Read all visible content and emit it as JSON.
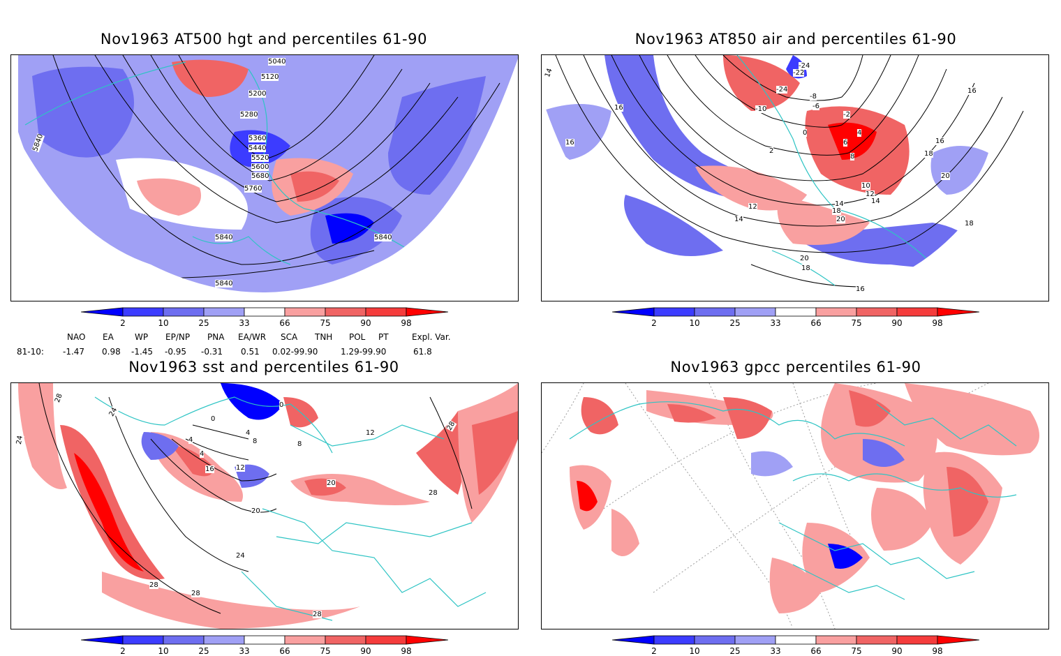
{
  "panels": [
    {
      "id": "at500",
      "title": "Nov1963 AT500 hgt and percentiles 61-90",
      "contour_labels": [
        "5040",
        "5120",
        "5200",
        "5280",
        "5360",
        "5440",
        "5520",
        "5600",
        "5680",
        "5760",
        "5840",
        "5840",
        "5840",
        "5840"
      ]
    },
    {
      "id": "at850",
      "title": "Nov1963 AT850 air and percentiles 61-90",
      "contour_labels": [
        "14",
        "16",
        "16",
        "-24",
        "-22",
        "-24",
        "-10",
        "-8",
        "-6",
        "-2",
        "0",
        "2",
        "4",
        "6",
        "8",
        "10",
        "12",
        "12",
        "14",
        "14",
        "16",
        "16",
        "18",
        "18",
        "18",
        "20",
        "20",
        "20",
        "16",
        "18",
        "14"
      ]
    },
    {
      "id": "sst",
      "title": "Nov1963 sst and percentiles 61-90",
      "contour_labels": [
        "24",
        "28",
        "24",
        "0",
        "0",
        "4",
        "4",
        "8",
        "12",
        "16",
        "4",
        "8",
        "12",
        "20",
        "24",
        "28",
        "28",
        "28",
        "20",
        "28",
        "28"
      ]
    },
    {
      "id": "gpcc",
      "title": "Nov1963 gpcc percentiles 61-90",
      "contour_labels": []
    }
  ],
  "colorbar": {
    "labels": [
      "2",
      "10",
      "25",
      "33",
      "66",
      "75",
      "90",
      "98"
    ],
    "colors": [
      "#0000ff",
      "#3c3cff",
      "#6e6ef0",
      "#a0a0f5",
      "#ffffff",
      "#f9a0a0",
      "#f06464",
      "#f53c3c",
      "#ff0000"
    ]
  },
  "teleconnections": {
    "headers": [
      "NAO",
      "EA",
      "WP",
      "EP/NP",
      "PNA",
      "EA/WR",
      "SCA",
      "TNH",
      "POL",
      "PT",
      "Expl. Var."
    ],
    "row_label": "81-10:",
    "values": [
      "-1.47",
      "0.98",
      "-1.45",
      "-0.95",
      "-0.31",
      "0.51",
      "0.02-99.90",
      "",
      "1.29-99.90",
      "",
      "61.8"
    ]
  },
  "map_colors": {
    "coast": "#2ec4c4",
    "grid": "#9a9a9a",
    "contour": "#000000"
  }
}
